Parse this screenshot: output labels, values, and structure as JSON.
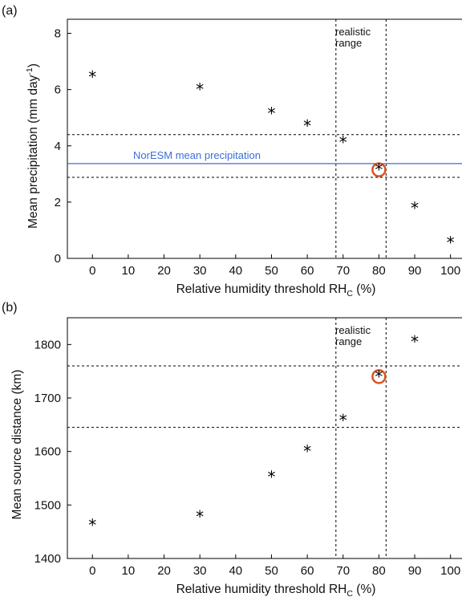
{
  "chart_data": [
    {
      "type": "scatter",
      "panel_label": "(a)",
      "xlabel_main": "Relative humidity threshold RH",
      "xlabel_sub": "C",
      "xlabel_tail": " (%)",
      "ylabel_main": "Mean precipitation (mm day",
      "ylabel_sup": "-1",
      "ylabel_tail": ")",
      "xlim": [
        -7,
        105
      ],
      "ylim": [
        0,
        8.5
      ],
      "xticks": [
        0,
        10,
        20,
        30,
        40,
        50,
        60,
        70,
        80,
        90,
        100
      ],
      "yticks": [
        0,
        2,
        4,
        6,
        8
      ],
      "x": [
        0,
        30,
        50,
        60,
        70,
        80,
        90,
        100
      ],
      "y": [
        6.45,
        6.0,
        5.15,
        4.7,
        4.12,
        3.15,
        1.78,
        0.55
      ],
      "marker": "*",
      "highlight_x": 80,
      "highlight_y": 3.15,
      "highlight_color": "#d9531e",
      "hlines_dashed": [
        4.4,
        2.88
      ],
      "vlines_dashed": [
        68,
        82
      ],
      "range_label_line1": "realistic",
      "range_label_line2": "range",
      "reference_line": {
        "y": 3.37,
        "label": "NorESM mean precipitation",
        "color": "#3a6fd8"
      }
    },
    {
      "type": "scatter",
      "panel_label": "(b)",
      "xlabel_main": "Relative humidity threshold RH",
      "xlabel_sub": "C",
      "xlabel_tail": " (%)",
      "ylabel_main": "Mean source distance (km)",
      "xlim": [
        -7,
        105
      ],
      "ylim": [
        1400,
        1850
      ],
      "xticks": [
        0,
        10,
        20,
        30,
        40,
        50,
        60,
        70,
        80,
        90,
        100
      ],
      "yticks": [
        1400,
        1500,
        1600,
        1700,
        1800
      ],
      "x": [
        0,
        30,
        50,
        60,
        70,
        80,
        90
      ],
      "y": [
        1462,
        1478,
        1552,
        1600,
        1658,
        1740,
        1805
      ],
      "marker": "*",
      "highlight_x": 80,
      "highlight_y": 1740,
      "highlight_color": "#d9531e",
      "hlines_dashed": [
        1760,
        1645
      ],
      "vlines_dashed": [
        68,
        82
      ],
      "range_label_line1": "realistic",
      "range_label_line2": "range"
    }
  ]
}
